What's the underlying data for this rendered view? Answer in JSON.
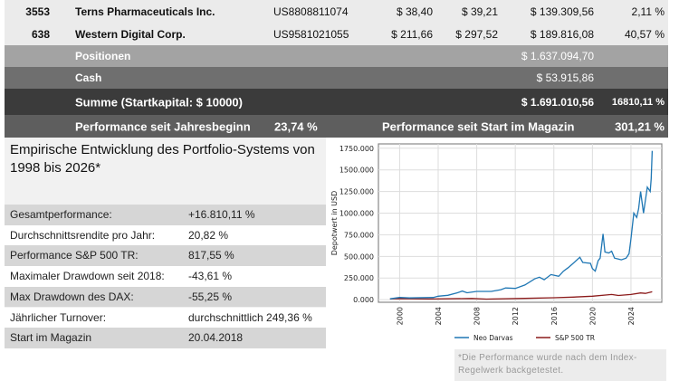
{
  "holdings": [
    {
      "qty": "3553",
      "name": "Terns Pharmaceuticals Inc.",
      "isin": "US8808811074",
      "buy": "$ 38,40",
      "current": "$ 39,21",
      "value": "$ 139.309,56",
      "perf": "2,11 %"
    },
    {
      "qty": "638",
      "name": "Western Digital Corp.",
      "isin": "US9581021055",
      "buy": "$ 211,66",
      "current": "$ 297,52",
      "value": "$ 189.816,08",
      "perf": "40,57 %"
    }
  ],
  "totals": {
    "positionen_label": "Positionen",
    "positionen_value": "$ 1.637.094,70",
    "cash_label": "Cash",
    "cash_value": "$ 53.915,86",
    "summe_label": "Summe (Startkapital: $ 10000)",
    "summe_value": "$ 1.691.010,56",
    "summe_perf": "16810,11 %",
    "ytd_label": "Performance seit Jahresbeginn",
    "ytd_value": "23,74 %",
    "mag_label": "Performance seit Start im Magazin",
    "mag_value": "301,21 %"
  },
  "stats": {
    "title": "Empirische Entwicklung des Portfolio-Systems von 1998 bis 2026*",
    "rows": [
      {
        "label": "Gesamtperformance:",
        "value": "+16.810,11 %"
      },
      {
        "label": "Durchschnittsrendite pro Jahr:",
        "value": "20,82 %"
      },
      {
        "label": "Performance S&P 500 TR:",
        "value": "817,55 %"
      },
      {
        "label": "Maximaler Drawdown seit 2018:",
        "value": "-43,61 %"
      },
      {
        "label": "Max Drawdown des DAX:",
        "value": "-55,25 %"
      },
      {
        "label": "Jährlicher Turnover:",
        "value": "durchschnittlich 249,36 %"
      },
      {
        "label": "Start im Magazin",
        "value": "20.04.2018"
      }
    ]
  },
  "footnote": "*Die Performance wurde nach dem Index-Regelwerk backgetestet.",
  "chart_data": {
    "type": "line",
    "ylabel": "Depotwert in USD",
    "ylim": [
      -30000,
      1800000
    ],
    "xlim": [
      1997.8,
      2027.2
    ],
    "yticks": [
      0,
      250000,
      500000,
      750000,
      1000000,
      1250000,
      1500000,
      1750000
    ],
    "ytick_labels": [
      "0.000",
      "250.000",
      "500.000",
      "750.000",
      "1000.000",
      "1250.000",
      "1500.000",
      "1750.000"
    ],
    "xticks": [
      2000,
      2004,
      2008,
      2012,
      2016,
      2020,
      2024
    ],
    "xtick_labels": [
      "2000",
      "2004",
      "2008",
      "2012",
      "2016",
      "2020",
      "2024"
    ],
    "grid": true,
    "legend_position": "bottom",
    "series": [
      {
        "name": "Neo Darvas",
        "color": "#1f77b4",
        "x": [
          1999,
          2000,
          2001,
          2003.5,
          2004,
          2005,
          2006,
          2006.5,
          2007,
          2008,
          2009.5,
          2010.5,
          2011,
          2012,
          2013,
          2014,
          2014.5,
          2015,
          2015.7,
          2016.5,
          2017,
          2017.5,
          2018,
          2018.7,
          2019,
          2019.8,
          2020,
          2020.3,
          2020.6,
          2020.8,
          2021.1,
          2021.3,
          2021.7,
          2022,
          2022.3,
          2022.7,
          2023,
          2023.5,
          2023.8,
          2024,
          2024.3,
          2024.6,
          2024.8,
          2025,
          2025.3,
          2025.5,
          2025.7,
          2026,
          2026.1,
          2026.2
        ],
        "y": [
          10000,
          25000,
          20000,
          25000,
          40000,
          50000,
          80000,
          100000,
          80000,
          95000,
          95000,
          115000,
          135000,
          130000,
          170000,
          240000,
          260000,
          230000,
          290000,
          270000,
          330000,
          370000,
          420000,
          490000,
          430000,
          420000,
          360000,
          330000,
          450000,
          480000,
          760000,
          550000,
          540000,
          560000,
          480000,
          470000,
          460000,
          480000,
          530000,
          700000,
          1000000,
          950000,
          1050000,
          1250000,
          1000000,
          1150000,
          1300000,
          1250000,
          1400000,
          1720000
        ]
      },
      {
        "name": "S&P 500 TR",
        "color": "#8b1a1a",
        "x": [
          1999,
          2000,
          2003,
          2007.5,
          2009,
          2013,
          2016,
          2018,
          2020,
          2021.5,
          2022,
          2022.7,
          2024,
          2025,
          2025.5,
          2026.2
        ],
        "y": [
          10000,
          12000,
          8000,
          14000,
          7000,
          15000,
          22000,
          30000,
          40000,
          55000,
          60000,
          48000,
          60000,
          78000,
          72000,
          91000
        ]
      }
    ]
  }
}
